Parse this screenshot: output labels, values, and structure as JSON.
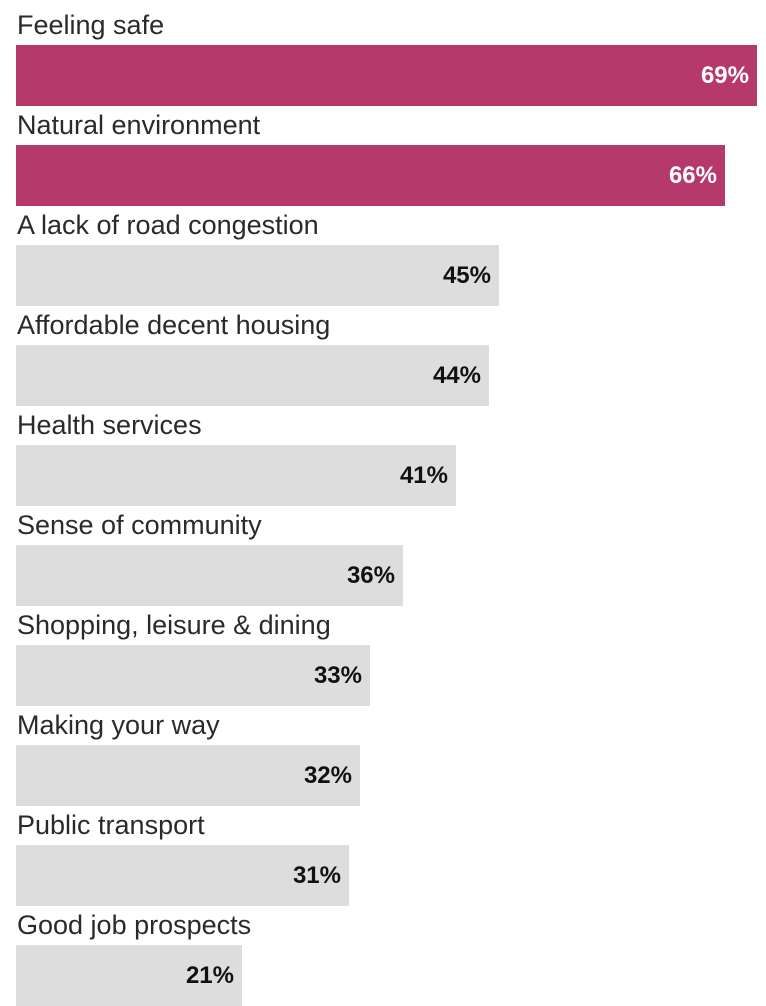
{
  "chart_data": {
    "type": "bar",
    "orientation": "horizontal",
    "categories": [
      "Feeling safe",
      "Natural environment",
      "A lack of road congestion",
      "Affordable decent housing",
      "Health services",
      "Sense of community",
      "Shopping, leisure & dining",
      "Making your way",
      "Public transport",
      "Good job prospects"
    ],
    "values": [
      69,
      66,
      45,
      44,
      41,
      36,
      33,
      32,
      31,
      21
    ],
    "value_labels": [
      "69%",
      "66%",
      "45%",
      "44%",
      "41%",
      "36%",
      "33%",
      "32%",
      "31%",
      "21%"
    ],
    "highlighted": [
      true,
      true,
      false,
      false,
      false,
      false,
      false,
      false,
      false,
      false
    ],
    "unit": "%",
    "xlim": [
      0,
      69
    ],
    "grid": false,
    "colors": {
      "highlight": "#b5396b",
      "default": "#dddddd",
      "label_on_highlight": "#ffffff",
      "label_default": "#111111"
    }
  }
}
